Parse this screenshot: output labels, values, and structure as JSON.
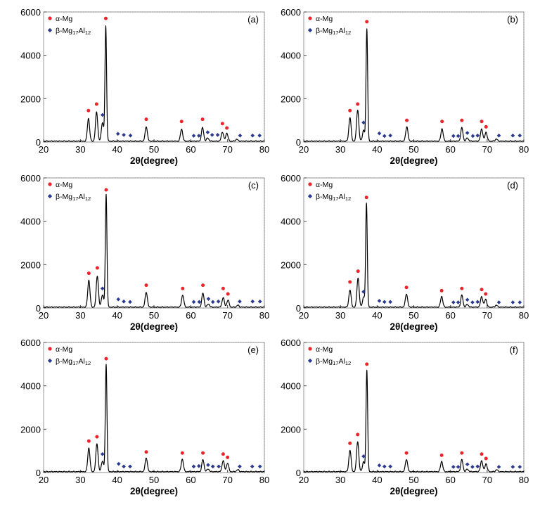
{
  "figure": {
    "legend_alpha": "α-Mg",
    "legend_beta_prefix": "β-Mg",
    "legend_beta_sub1": "17",
    "legend_beta_mid": "Al",
    "legend_beta_sub2": "12",
    "xlabel": "2θ(degree)",
    "alpha_color": "#e8262b",
    "beta_color": "#2b3a8f",
    "line_color": "#000000"
  },
  "chart_data": [
    {
      "type": "line",
      "panel": "(a)",
      "xlabel": "2θ(degree)",
      "ylabel": "",
      "xlim": [
        20,
        80
      ],
      "ylim": [
        0,
        6000
      ],
      "xticks": [
        20,
        30,
        40,
        50,
        60,
        70,
        80
      ],
      "yticks": [
        0,
        2000,
        4000,
        6000
      ],
      "peaks": [
        {
          "x": 32.2,
          "y": 1050
        },
        {
          "x": 34.4,
          "y": 1350
        },
        {
          "x": 36.0,
          "y": 870
        },
        {
          "x": 36.9,
          "y": 5300
        },
        {
          "x": 47.9,
          "y": 680
        },
        {
          "x": 57.5,
          "y": 560
        },
        {
          "x": 63.2,
          "y": 630
        },
        {
          "x": 64.6,
          "y": 150
        },
        {
          "x": 68.6,
          "y": 430
        },
        {
          "x": 69.8,
          "y": 380
        },
        {
          "x": 72.5,
          "y": 90
        }
      ],
      "alpha_markers": [
        {
          "x": 32.2,
          "y": 1450
        },
        {
          "x": 34.4,
          "y": 1750
        },
        {
          "x": 36.9,
          "y": 5700
        },
        {
          "x": 47.9,
          "y": 1050
        },
        {
          "x": 57.5,
          "y": 950
        },
        {
          "x": 63.2,
          "y": 1050
        },
        {
          "x": 68.6,
          "y": 850
        },
        {
          "x": 69.8,
          "y": 650
        }
      ],
      "beta_markers": [
        {
          "x": 36.0,
          "y": 1250
        },
        {
          "x": 40.2,
          "y": 380
        },
        {
          "x": 41.8,
          "y": 330
        },
        {
          "x": 43.6,
          "y": 300
        },
        {
          "x": 60.8,
          "y": 290
        },
        {
          "x": 62.2,
          "y": 290
        },
        {
          "x": 64.6,
          "y": 450
        },
        {
          "x": 65.8,
          "y": 330
        },
        {
          "x": 67.3,
          "y": 330
        },
        {
          "x": 73.4,
          "y": 300
        },
        {
          "x": 76.8,
          "y": 300
        },
        {
          "x": 78.7,
          "y": 300
        }
      ]
    },
    {
      "type": "line",
      "panel": "(b)",
      "xlabel": "2θ(degree)",
      "ylabel": "",
      "xlim": [
        20,
        80
      ],
      "ylim": [
        0,
        6000
      ],
      "xticks": [
        20,
        30,
        40,
        50,
        60,
        70,
        80
      ],
      "yticks": [
        0,
        2000,
        4000,
        6000
      ],
      "peaks": [
        {
          "x": 32.6,
          "y": 1100
        },
        {
          "x": 34.7,
          "y": 1450
        },
        {
          "x": 36.3,
          "y": 500
        },
        {
          "x": 37.2,
          "y": 5200
        },
        {
          "x": 48.1,
          "y": 680
        },
        {
          "x": 57.7,
          "y": 580
        },
        {
          "x": 63.1,
          "y": 620
        },
        {
          "x": 64.6,
          "y": 150
        },
        {
          "x": 68.5,
          "y": 580
        },
        {
          "x": 69.7,
          "y": 420
        },
        {
          "x": 72.5,
          "y": 100
        }
      ],
      "alpha_markers": [
        {
          "x": 32.6,
          "y": 1450
        },
        {
          "x": 34.7,
          "y": 1750
        },
        {
          "x": 37.2,
          "y": 5550
        },
        {
          "x": 48.1,
          "y": 1000
        },
        {
          "x": 57.7,
          "y": 950
        },
        {
          "x": 63.1,
          "y": 1000
        },
        {
          "x": 68.5,
          "y": 950
        },
        {
          "x": 69.7,
          "y": 700
        }
      ],
      "beta_markers": [
        {
          "x": 36.3,
          "y": 900
        },
        {
          "x": 40.6,
          "y": 400
        },
        {
          "x": 42.0,
          "y": 280
        },
        {
          "x": 43.6,
          "y": 300
        },
        {
          "x": 60.8,
          "y": 280
        },
        {
          "x": 62.1,
          "y": 280
        },
        {
          "x": 64.6,
          "y": 420
        },
        {
          "x": 66.1,
          "y": 280
        },
        {
          "x": 67.4,
          "y": 300
        },
        {
          "x": 73.2,
          "y": 300
        },
        {
          "x": 77.0,
          "y": 300
        },
        {
          "x": 78.9,
          "y": 300
        }
      ]
    },
    {
      "type": "line",
      "panel": "(c)",
      "xlabel": "2θ(degree)",
      "ylabel": "",
      "xlim": [
        20,
        80
      ],
      "ylim": [
        0,
        6000
      ],
      "xticks": [
        20,
        30,
        40,
        50,
        60,
        70,
        80
      ],
      "yticks": [
        0,
        2000,
        4000,
        6000
      ],
      "peaks": [
        {
          "x": 32.3,
          "y": 1250
        },
        {
          "x": 34.6,
          "y": 1450
        },
        {
          "x": 36.0,
          "y": 580
        },
        {
          "x": 37.0,
          "y": 5200
        },
        {
          "x": 47.9,
          "y": 700
        },
        {
          "x": 57.8,
          "y": 560
        },
        {
          "x": 63.3,
          "y": 650
        },
        {
          "x": 64.8,
          "y": 150
        },
        {
          "x": 68.8,
          "y": 450
        },
        {
          "x": 70.1,
          "y": 330
        },
        {
          "x": 72.8,
          "y": 90
        }
      ],
      "alpha_markers": [
        {
          "x": 32.3,
          "y": 1600
        },
        {
          "x": 34.6,
          "y": 1850
        },
        {
          "x": 37.0,
          "y": 5450
        },
        {
          "x": 47.9,
          "y": 1050
        },
        {
          "x": 57.8,
          "y": 900
        },
        {
          "x": 63.3,
          "y": 1050
        },
        {
          "x": 68.8,
          "y": 900
        },
        {
          "x": 70.1,
          "y": 650
        }
      ],
      "beta_markers": [
        {
          "x": 36.0,
          "y": 900
        },
        {
          "x": 40.3,
          "y": 400
        },
        {
          "x": 41.8,
          "y": 300
        },
        {
          "x": 43.5,
          "y": 280
        },
        {
          "x": 60.8,
          "y": 280
        },
        {
          "x": 62.3,
          "y": 280
        },
        {
          "x": 64.8,
          "y": 420
        },
        {
          "x": 66.0,
          "y": 280
        },
        {
          "x": 67.5,
          "y": 300
        },
        {
          "x": 73.3,
          "y": 300
        },
        {
          "x": 76.8,
          "y": 300
        },
        {
          "x": 78.8,
          "y": 300
        }
      ]
    },
    {
      "type": "line",
      "panel": "(d)",
      "xlabel": "2θ(degree)",
      "ylabel": "",
      "xlim": [
        20,
        80
      ],
      "ylim": [
        0,
        6000
      ],
      "xticks": [
        20,
        30,
        40,
        50,
        60,
        70,
        80
      ],
      "yticks": [
        0,
        2000,
        4000,
        6000
      ],
      "peaks": [
        {
          "x": 32.6,
          "y": 800
        },
        {
          "x": 34.8,
          "y": 1350
        },
        {
          "x": 36.3,
          "y": 450
        },
        {
          "x": 37.1,
          "y": 4800
        },
        {
          "x": 48.0,
          "y": 620
        },
        {
          "x": 57.6,
          "y": 500
        },
        {
          "x": 63.1,
          "y": 550
        },
        {
          "x": 64.6,
          "y": 130
        },
        {
          "x": 68.5,
          "y": 500
        },
        {
          "x": 69.6,
          "y": 370
        },
        {
          "x": 72.5,
          "y": 90
        }
      ],
      "alpha_markers": [
        {
          "x": 32.6,
          "y": 1200
        },
        {
          "x": 34.8,
          "y": 1700
        },
        {
          "x": 37.1,
          "y": 5100
        },
        {
          "x": 48.0,
          "y": 950
        },
        {
          "x": 57.6,
          "y": 800
        },
        {
          "x": 63.1,
          "y": 900
        },
        {
          "x": 68.5,
          "y": 850
        },
        {
          "x": 69.6,
          "y": 650
        }
      ],
      "beta_markers": [
        {
          "x": 36.3,
          "y": 750
        },
        {
          "x": 40.6,
          "y": 330
        },
        {
          "x": 42.0,
          "y": 280
        },
        {
          "x": 43.6,
          "y": 280
        },
        {
          "x": 60.8,
          "y": 260
        },
        {
          "x": 62.1,
          "y": 260
        },
        {
          "x": 64.6,
          "y": 380
        },
        {
          "x": 66.0,
          "y": 260
        },
        {
          "x": 67.4,
          "y": 280
        },
        {
          "x": 73.2,
          "y": 260
        },
        {
          "x": 77.0,
          "y": 260
        },
        {
          "x": 78.9,
          "y": 260
        }
      ]
    },
    {
      "type": "line",
      "panel": "(e)",
      "xlabel": "2θ(degree)",
      "ylabel": "",
      "xlim": [
        20,
        80
      ],
      "ylim": [
        0,
        6000
      ],
      "xticks": [
        20,
        30,
        40,
        50,
        60,
        70,
        80
      ],
      "yticks": [
        0,
        2000,
        4000,
        6000
      ],
      "peaks": [
        {
          "x": 32.3,
          "y": 1100
        },
        {
          "x": 34.5,
          "y": 1300
        },
        {
          "x": 36.0,
          "y": 500
        },
        {
          "x": 37.0,
          "y": 4950
        },
        {
          "x": 47.9,
          "y": 650
        },
        {
          "x": 57.7,
          "y": 580
        },
        {
          "x": 63.3,
          "y": 560
        },
        {
          "x": 64.7,
          "y": 130
        },
        {
          "x": 68.8,
          "y": 520
        },
        {
          "x": 70.0,
          "y": 400
        },
        {
          "x": 72.8,
          "y": 90
        }
      ],
      "alpha_markers": [
        {
          "x": 32.3,
          "y": 1450
        },
        {
          "x": 34.5,
          "y": 1650
        },
        {
          "x": 37.0,
          "y": 5250
        },
        {
          "x": 47.9,
          "y": 950
        },
        {
          "x": 57.7,
          "y": 900
        },
        {
          "x": 63.3,
          "y": 900
        },
        {
          "x": 68.8,
          "y": 850
        },
        {
          "x": 70.0,
          "y": 700
        }
      ],
      "beta_markers": [
        {
          "x": 36.0,
          "y": 850
        },
        {
          "x": 40.4,
          "y": 400
        },
        {
          "x": 41.8,
          "y": 280
        },
        {
          "x": 43.5,
          "y": 280
        },
        {
          "x": 60.8,
          "y": 280
        },
        {
          "x": 62.2,
          "y": 300
        },
        {
          "x": 64.7,
          "y": 350
        },
        {
          "x": 66.0,
          "y": 280
        },
        {
          "x": 67.6,
          "y": 280
        },
        {
          "x": 73.3,
          "y": 280
        },
        {
          "x": 76.7,
          "y": 280
        },
        {
          "x": 78.8,
          "y": 280
        }
      ]
    },
    {
      "type": "line",
      "panel": "(f)",
      "xlabel": "2θ(degree)",
      "ylabel": "",
      "xlim": [
        20,
        80
      ],
      "ylim": [
        0,
        6000
      ],
      "xticks": [
        20,
        30,
        40,
        50,
        60,
        70,
        80
      ],
      "yticks": [
        0,
        2000,
        4000,
        6000
      ],
      "peaks": [
        {
          "x": 32.6,
          "y": 1000
        },
        {
          "x": 34.7,
          "y": 1400
        },
        {
          "x": 36.3,
          "y": 450
        },
        {
          "x": 37.2,
          "y": 4700
        },
        {
          "x": 48.0,
          "y": 580
        },
        {
          "x": 57.6,
          "y": 480
        },
        {
          "x": 63.1,
          "y": 550
        },
        {
          "x": 64.6,
          "y": 120
        },
        {
          "x": 68.5,
          "y": 520
        },
        {
          "x": 69.7,
          "y": 370
        },
        {
          "x": 72.6,
          "y": 90
        }
      ],
      "alpha_markers": [
        {
          "x": 32.6,
          "y": 1350
        },
        {
          "x": 34.7,
          "y": 1750
        },
        {
          "x": 37.2,
          "y": 5000
        },
        {
          "x": 48.0,
          "y": 900
        },
        {
          "x": 57.6,
          "y": 800
        },
        {
          "x": 63.1,
          "y": 900
        },
        {
          "x": 68.5,
          "y": 850
        },
        {
          "x": 69.7,
          "y": 650
        }
      ],
      "beta_markers": [
        {
          "x": 36.3,
          "y": 750
        },
        {
          "x": 40.6,
          "y": 330
        },
        {
          "x": 42.0,
          "y": 280
        },
        {
          "x": 43.6,
          "y": 280
        },
        {
          "x": 60.8,
          "y": 260
        },
        {
          "x": 62.1,
          "y": 260
        },
        {
          "x": 64.6,
          "y": 380
        },
        {
          "x": 66.0,
          "y": 260
        },
        {
          "x": 67.4,
          "y": 280
        },
        {
          "x": 73.2,
          "y": 260
        },
        {
          "x": 77.0,
          "y": 260
        },
        {
          "x": 78.9,
          "y": 260
        }
      ]
    }
  ]
}
